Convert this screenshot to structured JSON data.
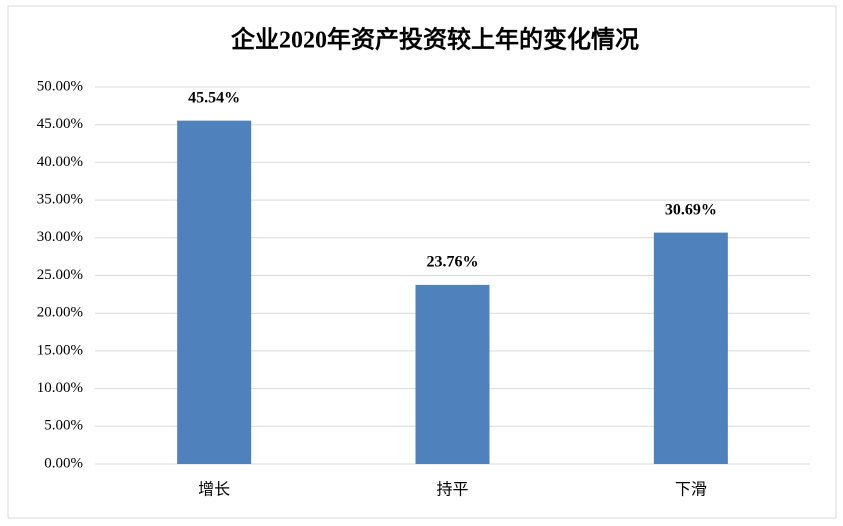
{
  "chart_data": {
    "type": "bar",
    "title": "企业2020年资产投资较上年的变化情况",
    "categories": [
      "增长",
      "持平",
      "下滑"
    ],
    "values": [
      45.54,
      23.76,
      30.69
    ],
    "value_labels": [
      "45.54%",
      "23.76%",
      "30.69%"
    ],
    "color": "#4f81bd",
    "ylim": [
      0,
      50
    ],
    "yticks": [
      {
        "value": 0,
        "label": "0.00%"
      },
      {
        "value": 5,
        "label": "5.00%"
      },
      {
        "value": 10,
        "label": "10.00%"
      },
      {
        "value": 15,
        "label": "15.00%"
      },
      {
        "value": 20,
        "label": "20.00%"
      },
      {
        "value": 25,
        "label": "25.00%"
      },
      {
        "value": 30,
        "label": "30.00%"
      },
      {
        "value": 35,
        "label": "35.00%"
      },
      {
        "value": 40,
        "label": "40.00%"
      },
      {
        "value": 45,
        "label": "45.00%"
      },
      {
        "value": 50,
        "label": "50.00%"
      }
    ],
    "grid": true
  }
}
